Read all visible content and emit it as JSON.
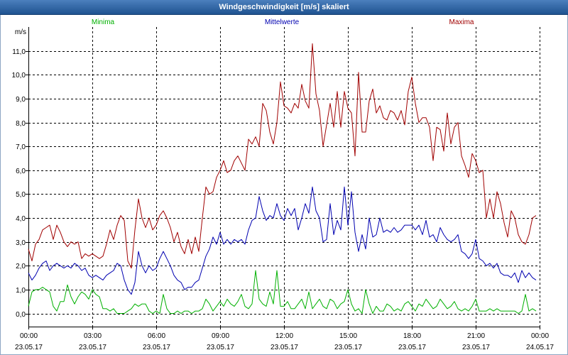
{
  "chart_data": {
    "type": "line",
    "title": "Windgeschwindigkeit [m/s] skaliert",
    "ylabel": "m/s",
    "xlim": [
      "23.05.17 00:00",
      "24.05.17 00:00"
    ],
    "ylim": [
      -0.55,
      12.0
    ],
    "grid": true,
    "legend_placement": "top",
    "y_ticks": [
      "0,0",
      "1,0",
      "2,0",
      "3,0",
      "4,0",
      "5,0",
      "6,0",
      "7,0",
      "8,0",
      "9,0",
      "10,0",
      "11,0"
    ],
    "x_ticks": [
      {
        "time": "00:00",
        "date": "23.05.17"
      },
      {
        "time": "03:00",
        "date": "23.05.17"
      },
      {
        "time": "06:00",
        "date": "23.05.17"
      },
      {
        "time": "09:00",
        "date": "23.05.17"
      },
      {
        "time": "12:00",
        "date": "23.05.17"
      },
      {
        "time": "15:00",
        "date": "23.05.17"
      },
      {
        "time": "18:00",
        "date": "23.05.17"
      },
      {
        "time": "21:00",
        "date": "23.05.17"
      },
      {
        "time": "00:00",
        "date": "24.05.17"
      }
    ],
    "x": [
      "23.05.17 00:00",
      "23.05.17 00:10",
      "23.05.17 00:20",
      "23.05.17 00:30",
      "23.05.17 00:40",
      "23.05.17 00:50",
      "23.05.17 01:00",
      "23.05.17 01:10",
      "23.05.17 01:20",
      "23.05.17 01:30",
      "23.05.17 01:40",
      "23.05.17 01:50",
      "23.05.17 02:00",
      "23.05.17 02:10",
      "23.05.17 02:20",
      "23.05.17 02:30",
      "23.05.17 02:40",
      "23.05.17 02:50",
      "23.05.17 03:00",
      "23.05.17 03:10",
      "23.05.17 03:20",
      "23.05.17 03:30",
      "23.05.17 03:40",
      "23.05.17 03:50",
      "23.05.17 04:00",
      "23.05.17 04:10",
      "23.05.17 04:20",
      "23.05.17 04:30",
      "23.05.17 04:40",
      "23.05.17 04:50",
      "23.05.17 05:00",
      "23.05.17 05:10",
      "23.05.17 05:20",
      "23.05.17 05:30",
      "23.05.17 05:40",
      "23.05.17 05:50",
      "23.05.17 06:00",
      "23.05.17 06:10",
      "23.05.17 06:20",
      "23.05.17 06:30",
      "23.05.17 06:40",
      "23.05.17 06:50",
      "23.05.17 07:00",
      "23.05.17 07:10",
      "23.05.17 07:20",
      "23.05.17 07:30",
      "23.05.17 07:40",
      "23.05.17 07:50",
      "23.05.17 08:00",
      "23.05.17 08:10",
      "23.05.17 08:20",
      "23.05.17 08:30",
      "23.05.17 08:40",
      "23.05.17 08:50",
      "23.05.17 09:00",
      "23.05.17 09:10",
      "23.05.17 09:20",
      "23.05.17 09:30",
      "23.05.17 09:40",
      "23.05.17 09:50",
      "23.05.17 10:00",
      "23.05.17 10:10",
      "23.05.17 10:20",
      "23.05.17 10:30",
      "23.05.17 10:40",
      "23.05.17 10:50",
      "23.05.17 11:00",
      "23.05.17 11:10",
      "23.05.17 11:20",
      "23.05.17 11:30",
      "23.05.17 11:40",
      "23.05.17 11:50",
      "23.05.17 12:00",
      "23.05.17 12:10",
      "23.05.17 12:20",
      "23.05.17 12:30",
      "23.05.17 12:40",
      "23.05.17 12:50",
      "23.05.17 13:00",
      "23.05.17 13:10",
      "23.05.17 13:20",
      "23.05.17 13:30",
      "23.05.17 13:40",
      "23.05.17 13:50",
      "23.05.17 14:00",
      "23.05.17 14:10",
      "23.05.17 14:20",
      "23.05.17 14:30",
      "23.05.17 14:40",
      "23.05.17 14:50",
      "23.05.17 15:00",
      "23.05.17 15:10",
      "23.05.17 15:20",
      "23.05.17 15:30",
      "23.05.17 15:40",
      "23.05.17 15:50",
      "23.05.17 16:00",
      "23.05.17 16:10",
      "23.05.17 16:20",
      "23.05.17 16:30",
      "23.05.17 16:40",
      "23.05.17 16:50",
      "23.05.17 17:00",
      "23.05.17 17:10",
      "23.05.17 17:20",
      "23.05.17 17:30",
      "23.05.17 17:40",
      "23.05.17 17:50",
      "23.05.17 18:00",
      "23.05.17 18:10",
      "23.05.17 18:20",
      "23.05.17 18:30",
      "23.05.17 18:40",
      "23.05.17 18:50",
      "23.05.17 19:00",
      "23.05.17 19:10",
      "23.05.17 19:20",
      "23.05.17 19:30",
      "23.05.17 19:40",
      "23.05.17 19:50",
      "23.05.17 20:00",
      "23.05.17 20:10",
      "23.05.17 20:20",
      "23.05.17 20:30",
      "23.05.17 20:40",
      "23.05.17 20:50",
      "23.05.17 21:00",
      "23.05.17 21:10",
      "23.05.17 21:20",
      "23.05.17 21:30",
      "23.05.17 21:40",
      "23.05.17 21:50",
      "23.05.17 22:00",
      "23.05.17 22:10",
      "23.05.17 22:20",
      "23.05.17 22:30",
      "23.05.17 22:40",
      "23.05.17 22:50",
      "23.05.17 23:00",
      "23.05.17 23:10",
      "23.05.17 23:20",
      "23.05.17 23:30",
      "23.05.17 23:40",
      "23.05.17 23:50"
    ],
    "series": [
      {
        "name": "Minima",
        "color": "#00b000",
        "values": [
          0.3,
          0.9,
          1.0,
          1.0,
          1.1,
          1.0,
          0.9,
          0.3,
          0.1,
          0.5,
          0.5,
          1.2,
          0.7,
          0.4,
          0.7,
          0.9,
          0.8,
          0.6,
          1.0,
          0.8,
          0.7,
          0.2,
          0.2,
          0.1,
          0.2,
          0.0,
          0.0,
          0.0,
          0.1,
          0.2,
          0.4,
          0.3,
          0.4,
          0.4,
          0.1,
          0.0,
          0.1,
          0.0,
          0.8,
          0.2,
          0.0,
          0.0,
          0.1,
          0.0,
          0.1,
          0.1,
          0.0,
          0.1,
          0.1,
          0.2,
          0.6,
          0.4,
          0.1,
          0.3,
          0.5,
          0.3,
          0.6,
          0.4,
          0.3,
          0.5,
          0.8,
          0.3,
          0.2,
          0.4,
          1.8,
          0.6,
          0.4,
          0.3,
          0.9,
          0.4,
          1.8,
          0.3,
          0.3,
          0.5,
          0.2,
          0.2,
          0.4,
          0.6,
          0.2,
          0.9,
          0.2,
          0.4,
          0.6,
          0.3,
          0.2,
          0.6,
          0.5,
          0.2,
          0.4,
          0.5,
          1.0,
          0.4,
          0.1,
          0.2,
          0.0,
          1.0,
          0.4,
          0.0,
          0.3,
          0.1,
          0.1,
          0.4,
          0.3,
          0.1,
          0.2,
          0.1,
          0.4,
          0.5,
          0.3,
          0.1,
          0.4,
          0.3,
          0.6,
          0.4,
          0.2,
          0.3,
          0.6,
          0.4,
          0.2,
          0.3,
          0.5,
          0.2,
          0.1,
          0.2,
          0.1,
          0.3,
          0.6,
          0.1,
          0.1,
          0.1,
          0.2,
          0.1,
          0.2,
          0.1,
          0.1,
          0.1,
          0.1,
          0.1,
          0.0,
          0.1,
          0.8,
          0.1,
          0.2,
          0.1
        ]
      },
      {
        "name": "Mittelwerte",
        "color": "#0000b0",
        "values": [
          1.7,
          1.4,
          1.6,
          1.9,
          2.1,
          2.2,
          1.8,
          2.0,
          2.1,
          2.0,
          1.9,
          2.0,
          1.9,
          2.1,
          2.0,
          1.8,
          1.9,
          1.6,
          1.5,
          1.6,
          1.5,
          1.4,
          1.6,
          1.7,
          1.8,
          2.1,
          2.0,
          1.4,
          1.0,
          0.8,
          1.3,
          2.6,
          2.0,
          1.7,
          2.0,
          1.8,
          1.9,
          2.3,
          2.6,
          2.3,
          2.0,
          1.6,
          1.4,
          1.3,
          1.0,
          1.1,
          1.1,
          1.3,
          1.4,
          1.9,
          2.4,
          2.7,
          3.2,
          2.9,
          3.4,
          2.9,
          3.1,
          2.9,
          3.1,
          3.0,
          3.1,
          2.9,
          3.5,
          3.9,
          4.0,
          4.9,
          4.3,
          3.9,
          4.1,
          4.0,
          4.6,
          4.1,
          3.9,
          4.4,
          4.1,
          4.4,
          3.5,
          4.0,
          4.6,
          4.2,
          5.3,
          4.3,
          4.0,
          3.0,
          3.1,
          4.6,
          3.3,
          3.9,
          3.5,
          5.3,
          3.7,
          5.1,
          3.4,
          2.6,
          3.3,
          2.7,
          4.0,
          3.2,
          3.3,
          4.0,
          3.4,
          3.5,
          3.4,
          3.6,
          3.4,
          3.5,
          3.7,
          3.7,
          3.7,
          3.5,
          3.7,
          3.3,
          3.9,
          3.2,
          3.3,
          3.0,
          3.6,
          3.3,
          3.1,
          3.0,
          3.1,
          3.3,
          2.6,
          2.5,
          2.3,
          2.5,
          3.1,
          2.3,
          2.2,
          2.0,
          2.1,
          1.9,
          2.1,
          1.7,
          1.6,
          1.6,
          1.5,
          1.7,
          1.3,
          1.8,
          1.5,
          1.7,
          1.5,
          1.4
        ]
      },
      {
        "name": "Maxima",
        "color": "#a00000",
        "values": [
          2.7,
          2.2,
          2.9,
          3.1,
          3.5,
          3.6,
          3.7,
          3.1,
          3.7,
          3.4,
          3.0,
          2.8,
          3.0,
          2.9,
          3.0,
          2.3,
          2.5,
          2.4,
          2.5,
          2.4,
          2.3,
          2.4,
          2.9,
          3.5,
          3.1,
          3.7,
          4.1,
          3.9,
          2.2,
          1.9,
          3.5,
          4.8,
          4.0,
          3.6,
          4.0,
          3.5,
          3.7,
          4.1,
          4.3,
          4.0,
          3.6,
          3.0,
          3.4,
          2.8,
          2.5,
          3.1,
          2.5,
          3.2,
          2.6,
          4.0,
          5.3,
          5.0,
          5.1,
          5.7,
          6.0,
          6.4,
          5.9,
          6.0,
          6.4,
          6.6,
          6.3,
          6.0,
          7.3,
          7.1,
          7.4,
          7.0,
          8.8,
          8.5,
          7.6,
          7.1,
          8.0,
          9.7,
          8.7,
          8.6,
          8.4,
          8.8,
          8.6,
          9.6,
          8.9,
          8.6,
          11.3,
          9.2,
          8.5,
          7.0,
          7.9,
          8.8,
          7.8,
          9.3,
          7.8,
          9.3,
          8.6,
          8.4,
          6.6,
          10.1,
          7.6,
          7.6,
          8.9,
          9.4,
          8.4,
          8.7,
          8.2,
          8.1,
          8.5,
          8.4,
          8.1,
          8.5,
          7.9,
          9.3,
          9.9,
          8.8,
          8.0,
          8.2,
          8.2,
          7.8,
          6.4,
          7.8,
          7.7,
          6.8,
          8.4,
          7.1,
          7.8,
          8.0,
          6.6,
          6.2,
          5.7,
          6.7,
          6.4,
          5.9,
          6.0,
          4.0,
          4.8,
          4.0,
          5.1,
          4.6,
          3.8,
          3.2,
          4.3,
          4.0,
          3.3,
          3.0,
          2.9,
          3.3,
          4.0,
          4.1
        ]
      }
    ]
  },
  "colors": {
    "title_bar_top": "#4b7fbd",
    "title_bar_bottom": "#1f5390",
    "title_text": "#ffffff",
    "grid": "#000000",
    "axis": "#000000",
    "background": "#ffffff"
  }
}
